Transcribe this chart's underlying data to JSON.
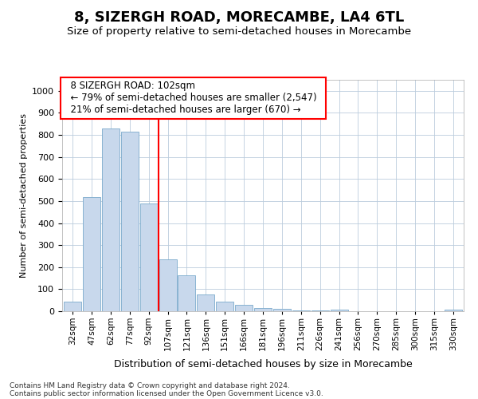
{
  "title": "8, SIZERGH ROAD, MORECAMBE, LA4 6TL",
  "subtitle": "Size of property relative to semi-detached houses in Morecambe",
  "xlabel": "Distribution of semi-detached houses by size in Morecambe",
  "ylabel": "Number of semi-detached properties",
  "footer_line1": "Contains HM Land Registry data © Crown copyright and database right 2024.",
  "footer_line2": "Contains public sector information licensed under the Open Government Licence v3.0.",
  "annotation_line1": "8 SIZERGH ROAD: 102sqm",
  "annotation_line2": "← 79% of semi-detached houses are smaller (2,547)",
  "annotation_line3": "21% of semi-detached houses are larger (670) →",
  "categories": [
    "32sqm",
    "47sqm",
    "62sqm",
    "77sqm",
    "92sqm",
    "107sqm",
    "121sqm",
    "136sqm",
    "151sqm",
    "166sqm",
    "181sqm",
    "196sqm",
    "211sqm",
    "226sqm",
    "241sqm",
    "256sqm",
    "270sqm",
    "285sqm",
    "300sqm",
    "315sqm",
    "330sqm"
  ],
  "values": [
    42,
    518,
    830,
    815,
    490,
    235,
    162,
    75,
    45,
    30,
    15,
    10,
    5,
    2,
    8,
    0,
    0,
    0,
    0,
    0,
    8
  ],
  "bar_color": "#c8d8ec",
  "bar_edge_color": "#7aaacc",
  "vline_color": "red",
  "vline_x": 4.5,
  "ylim": [
    0,
    1050
  ],
  "yticks": [
    0,
    100,
    200,
    300,
    400,
    500,
    600,
    700,
    800,
    900,
    1000
  ],
  "grid_color": "#bbccdd",
  "background_color": "#ffffff",
  "annotation_box_color": "white",
  "annotation_box_edge": "red",
  "title_fontsize": 13,
  "subtitle_fontsize": 9.5
}
